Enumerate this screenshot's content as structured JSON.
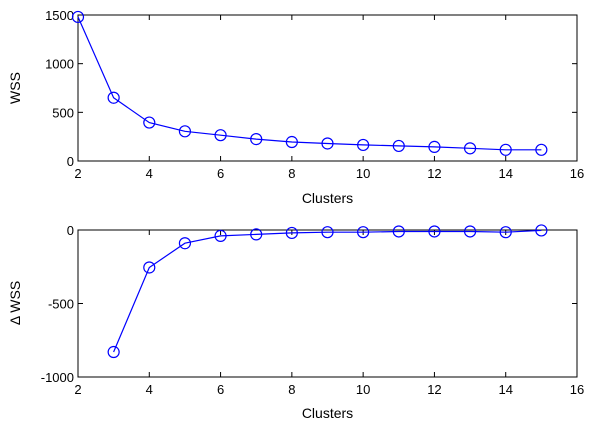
{
  "chart_data": [
    {
      "type": "line",
      "title": "",
      "xlabel": "Clusters",
      "ylabel": "WSS",
      "xlim": [
        2,
        16
      ],
      "ylim": [
        0,
        1500
      ],
      "xticks": [
        2,
        4,
        6,
        8,
        10,
        12,
        14,
        16
      ],
      "yticks": [
        0,
        500,
        1000,
        1500
      ],
      "grid": false,
      "marker": "circle-open",
      "color": "#0000ff",
      "x": [
        2,
        3,
        4,
        5,
        6,
        7,
        8,
        9,
        10,
        11,
        12,
        13,
        14,
        15
      ],
      "y": [
        1480,
        650,
        395,
        305,
        265,
        225,
        195,
        180,
        165,
        155,
        145,
        130,
        115,
        115
      ]
    },
    {
      "type": "line",
      "title": "",
      "xlabel": "Clusters",
      "ylabel": "Δ WSS",
      "xlim": [
        2,
        16
      ],
      "ylim": [
        -1000,
        0
      ],
      "xticks": [
        2,
        4,
        6,
        8,
        10,
        12,
        14,
        16
      ],
      "yticks": [
        -1000,
        -500,
        0
      ],
      "grid": false,
      "marker": "circle-open",
      "color": "#0000ff",
      "x": [
        3,
        4,
        5,
        6,
        7,
        8,
        9,
        10,
        11,
        12,
        13,
        14,
        15
      ],
      "y": [
        -830,
        -255,
        -90,
        -40,
        -30,
        -20,
        -15,
        -15,
        -10,
        -10,
        -10,
        -15,
        -3
      ]
    }
  ]
}
